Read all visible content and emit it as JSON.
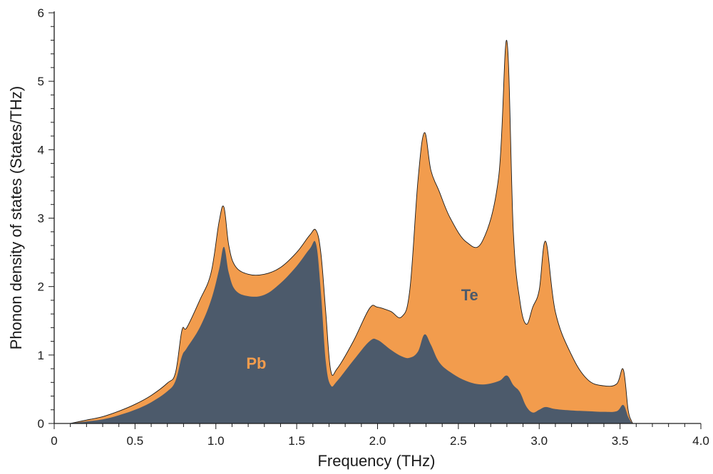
{
  "chart_data": {
    "type": "area",
    "title": "",
    "xlabel": "Frequency (THz)",
    "ylabel": "Phonon density of states (States/THz)",
    "xlim": [
      0,
      4.0
    ],
    "ylim": [
      0,
      6
    ],
    "x_ticks": [
      "0",
      "0.5",
      "1.0",
      "1.5",
      "2.0",
      "2.5",
      "3.0",
      "3.5",
      "4.0"
    ],
    "y_ticks": [
      "0",
      "1",
      "2",
      "3",
      "4",
      "5",
      "6"
    ],
    "grid": false,
    "stacked": true,
    "series": [
      {
        "name": "Pb",
        "color": "#4c5a6b",
        "x": [
          0.1,
          0.2,
          0.3,
          0.4,
          0.5,
          0.6,
          0.7,
          0.75,
          0.79,
          0.82,
          0.9,
          0.97,
          1.02,
          1.05,
          1.08,
          1.12,
          1.2,
          1.3,
          1.4,
          1.5,
          1.58,
          1.62,
          1.65,
          1.68,
          1.71,
          1.75,
          1.85,
          1.95,
          2.0,
          2.08,
          2.15,
          2.2,
          2.25,
          2.29,
          2.33,
          2.38,
          2.45,
          2.55,
          2.65,
          2.75,
          2.8,
          2.84,
          2.88,
          2.92,
          2.96,
          3.0,
          3.04,
          3.1,
          3.2,
          3.3,
          3.4,
          3.48,
          3.52,
          3.55,
          3.57,
          3.58
        ],
        "values": [
          0.0,
          0.03,
          0.06,
          0.12,
          0.2,
          0.31,
          0.47,
          0.62,
          0.98,
          1.1,
          1.4,
          1.8,
          2.25,
          2.58,
          2.2,
          1.95,
          1.86,
          1.88,
          2.05,
          2.3,
          2.55,
          2.62,
          1.9,
          0.9,
          0.56,
          0.62,
          0.92,
          1.2,
          1.22,
          1.08,
          0.98,
          0.96,
          1.05,
          1.3,
          1.15,
          0.9,
          0.75,
          0.62,
          0.57,
          0.62,
          0.7,
          0.56,
          0.46,
          0.25,
          0.16,
          0.2,
          0.24,
          0.21,
          0.19,
          0.18,
          0.17,
          0.18,
          0.27,
          0.1,
          0.02,
          0.0
        ]
      },
      {
        "name": "Te",
        "color": "#f29c4d",
        "x": [
          0.1,
          0.2,
          0.3,
          0.4,
          0.5,
          0.6,
          0.7,
          0.75,
          0.79,
          0.82,
          0.9,
          0.97,
          1.02,
          1.05,
          1.08,
          1.12,
          1.2,
          1.3,
          1.4,
          1.5,
          1.58,
          1.62,
          1.65,
          1.68,
          1.71,
          1.75,
          1.85,
          1.95,
          2.0,
          2.08,
          2.15,
          2.2,
          2.25,
          2.29,
          2.33,
          2.38,
          2.45,
          2.55,
          2.65,
          2.75,
          2.8,
          2.84,
          2.88,
          2.92,
          2.96,
          3.0,
          3.04,
          3.1,
          3.2,
          3.3,
          3.4,
          3.48,
          3.52,
          3.55,
          3.57,
          3.58
        ],
        "values": [
          0.0,
          0.02,
          0.04,
          0.06,
          0.08,
          0.1,
          0.12,
          0.12,
          0.38,
          0.3,
          0.4,
          0.4,
          0.7,
          0.58,
          0.4,
          0.35,
          0.32,
          0.3,
          0.23,
          0.2,
          0.2,
          0.2,
          0.58,
          0.72,
          0.22,
          0.18,
          0.28,
          0.48,
          0.48,
          0.56,
          0.58,
          1.0,
          2.5,
          2.95,
          2.55,
          2.5,
          2.25,
          2.03,
          2.1,
          3.0,
          4.89,
          2.24,
          1.34,
          1.2,
          1.54,
          1.75,
          2.42,
          1.42,
          0.81,
          0.46,
          0.38,
          0.4,
          0.52,
          0.1,
          0.02,
          0.0
        ]
      }
    ],
    "annotations": [
      {
        "text": "Pb",
        "x": 1.25,
        "y": 0.8,
        "color": "#f29c4d"
      },
      {
        "text": "Te",
        "x": 2.57,
        "y": 1.8,
        "color": "#4c5a6b"
      }
    ]
  }
}
